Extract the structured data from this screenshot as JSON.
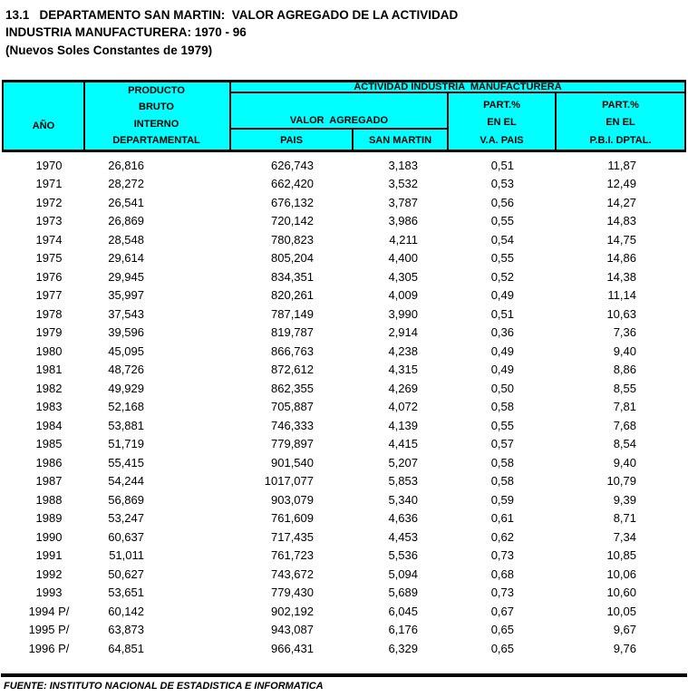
{
  "title": {
    "line1": "13.1   DEPARTAMENTO SAN MARTIN:  VALOR AGREGADO DE LA ACTIVIDAD",
    "line2": "INDUSTRIA MANUFACTURERA: 1970 - 96",
    "line3": "(Nuevos Soles Constantes de 1979)"
  },
  "colors": {
    "header_background": "#00FFFF",
    "border": "#000000",
    "text": "#000000"
  },
  "table": {
    "header": {
      "col_year": "AÑO",
      "col_pbi_lines": [
        "PRODUCTO",
        "BRUTO",
        "INTERNO",
        "DEPARTAMENTAL"
      ],
      "group_title": "ACTIVIDAD INDUSTRIA  MANUFACTURERA",
      "valor_agregado": "VALOR  AGREGADO",
      "col_pais": "PAIS",
      "col_san_martin": "SAN MARTIN",
      "col_part_va_lines": [
        "PART.%",
        "EN EL",
        "V.A. PAIS"
      ],
      "col_part_pbi_lines": [
        "PART.%",
        "EN EL",
        "P.B.I. DPTAL."
      ]
    },
    "rows": [
      {
        "year": "1970",
        "pbi": "26,816",
        "pais": "626,743",
        "san_martin": "3,183",
        "part_va_pais": "0,51",
        "part_pbi": "11,87"
      },
      {
        "year": "1971",
        "pbi": "28,272",
        "pais": "662,420",
        "san_martin": "3,532",
        "part_va_pais": "0,53",
        "part_pbi": "12,49"
      },
      {
        "year": "1972",
        "pbi": "26,541",
        "pais": "676,132",
        "san_martin": "3,787",
        "part_va_pais": "0,56",
        "part_pbi": "14,27"
      },
      {
        "year": "1973",
        "pbi": "26,869",
        "pais": "720,142",
        "san_martin": "3,986",
        "part_va_pais": "0,55",
        "part_pbi": "14,83"
      },
      {
        "year": "1974",
        "pbi": "28,548",
        "pais": "780,823",
        "san_martin": "4,211",
        "part_va_pais": "0,54",
        "part_pbi": "14,75"
      },
      {
        "year": "1975",
        "pbi": "29,614",
        "pais": "805,204",
        "san_martin": "4,400",
        "part_va_pais": "0,55",
        "part_pbi": "14,86"
      },
      {
        "year": "1976",
        "pbi": "29,945",
        "pais": "834,351",
        "san_martin": "4,305",
        "part_va_pais": "0,52",
        "part_pbi": "14,38"
      },
      {
        "year": "1977",
        "pbi": "35,997",
        "pais": "820,261",
        "san_martin": "4,009",
        "part_va_pais": "0,49",
        "part_pbi": "11,14"
      },
      {
        "year": "1978",
        "pbi": "37,543",
        "pais": "787,149",
        "san_martin": "3,990",
        "part_va_pais": "0,51",
        "part_pbi": "10,63"
      },
      {
        "year": "1979",
        "pbi": "39,596",
        "pais": "819,787",
        "san_martin": "2,914",
        "part_va_pais": "0,36",
        "part_pbi": "7,36"
      },
      {
        "year": "1980",
        "pbi": "45,095",
        "pais": "866,763",
        "san_martin": "4,238",
        "part_va_pais": "0,49",
        "part_pbi": "9,40"
      },
      {
        "year": "1981",
        "pbi": "48,726",
        "pais": "872,612",
        "san_martin": "4,315",
        "part_va_pais": "0,49",
        "part_pbi": "8,86"
      },
      {
        "year": "1982",
        "pbi": "49,929",
        "pais": "862,355",
        "san_martin": "4,269",
        "part_va_pais": "0,50",
        "part_pbi": "8,55"
      },
      {
        "year": "1983",
        "pbi": "52,168",
        "pais": "705,887",
        "san_martin": "4,072",
        "part_va_pais": "0,58",
        "part_pbi": "7,81"
      },
      {
        "year": "1984",
        "pbi": "53,881",
        "pais": "746,333",
        "san_martin": "4,139",
        "part_va_pais": "0,55",
        "part_pbi": "7,68"
      },
      {
        "year": "1985",
        "pbi": "51,719",
        "pais": "779,897",
        "san_martin": "4,415",
        "part_va_pais": "0,57",
        "part_pbi": "8,54"
      },
      {
        "year": "1986",
        "pbi": "55,415",
        "pais": "901,540",
        "san_martin": "5,207",
        "part_va_pais": "0,58",
        "part_pbi": "9,40"
      },
      {
        "year": "1987",
        "pbi": "54,244",
        "pais": "1017,077",
        "san_martin": "5,853",
        "part_va_pais": "0,58",
        "part_pbi": "10,79"
      },
      {
        "year": "1988",
        "pbi": "56,869",
        "pais": "903,079",
        "san_martin": "5,340",
        "part_va_pais": "0,59",
        "part_pbi": "9,39"
      },
      {
        "year": "1989",
        "pbi": "53,247",
        "pais": "761,609",
        "san_martin": "4,636",
        "part_va_pais": "0,61",
        "part_pbi": "8,71"
      },
      {
        "year": "1990",
        "pbi": "60,637",
        "pais": "717,435",
        "san_martin": "4,453",
        "part_va_pais": "0,62",
        "part_pbi": "7,34"
      },
      {
        "year": "1991",
        "pbi": "51,011",
        "pais": "761,723",
        "san_martin": "5,536",
        "part_va_pais": "0,73",
        "part_pbi": "10,85"
      },
      {
        "year": "1992",
        "pbi": "50,627",
        "pais": "743,672",
        "san_martin": "5,094",
        "part_va_pais": "0,68",
        "part_pbi": "10,06"
      },
      {
        "year": "1993",
        "pbi": "53,651",
        "pais": "779,430",
        "san_martin": "5,689",
        "part_va_pais": "0,73",
        "part_pbi": "10,60"
      },
      {
        "year": "1994 P/",
        "pbi": "60,142",
        "pais": "902,192",
        "san_martin": "6,045",
        "part_va_pais": "0,67",
        "part_pbi": "10,05"
      },
      {
        "year": "1995 P/",
        "pbi": "63,873",
        "pais": "943,087",
        "san_martin": "6,176",
        "part_va_pais": "0,65",
        "part_pbi": "9,67"
      },
      {
        "year": "1996 P/",
        "pbi": "64,851",
        "pais": "966,431",
        "san_martin": "6,329",
        "part_va_pais": "0,65",
        "part_pbi": "9,76"
      }
    ]
  },
  "footer": {
    "source": "FUENTE: INSTITUTO NACIONAL DE ESTADISTICA E INFORMATICA"
  }
}
